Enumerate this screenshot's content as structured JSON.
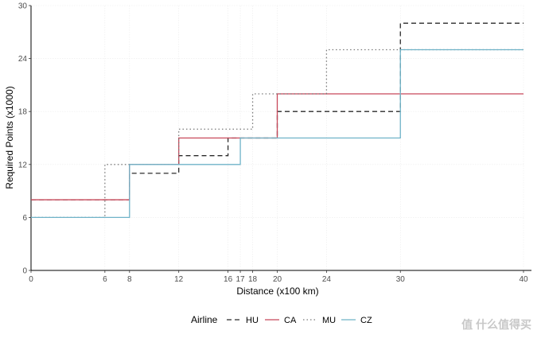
{
  "chart_data": {
    "type": "line",
    "step": true,
    "xlabel": "Distance (x100 km)",
    "ylabel": "Required Points (x1000)",
    "xlim": [
      0,
      40
    ],
    "ylim": [
      0,
      30
    ],
    "x_ticks": [
      0,
      6,
      8,
      12,
      16,
      17,
      18,
      20,
      24,
      30,
      40
    ],
    "y_ticks": [
      0,
      6,
      12,
      18,
      24,
      30
    ],
    "grid": true,
    "legend_title": "Airline",
    "legend_position": "bottom",
    "series": [
      {
        "name": "HU",
        "color": "#2b2b2b",
        "dash": "dashed",
        "x": [
          0,
          8,
          12,
          16,
          20,
          30,
          40
        ],
        "y": [
          8,
          11,
          13,
          15,
          18,
          28,
          28
        ]
      },
      {
        "name": "CA",
        "color": "#c8485a",
        "dash": "solid",
        "x": [
          0,
          8,
          12,
          20,
          30,
          40
        ],
        "y": [
          8,
          12,
          15,
          20,
          20,
          20
        ]
      },
      {
        "name": "MU",
        "color": "#7a7a7a",
        "dash": "dotted",
        "x": [
          0,
          6,
          12,
          18,
          24,
          30,
          40
        ],
        "y": [
          6,
          12,
          16,
          20,
          25,
          25,
          25
        ]
      },
      {
        "name": "CZ",
        "color": "#6fb3c8",
        "dash": "solid",
        "x": [
          0,
          8,
          17,
          20,
          30,
          40
        ],
        "y": [
          6,
          12,
          15,
          15,
          25,
          25
        ]
      }
    ]
  },
  "watermark": "值 什么值得买"
}
